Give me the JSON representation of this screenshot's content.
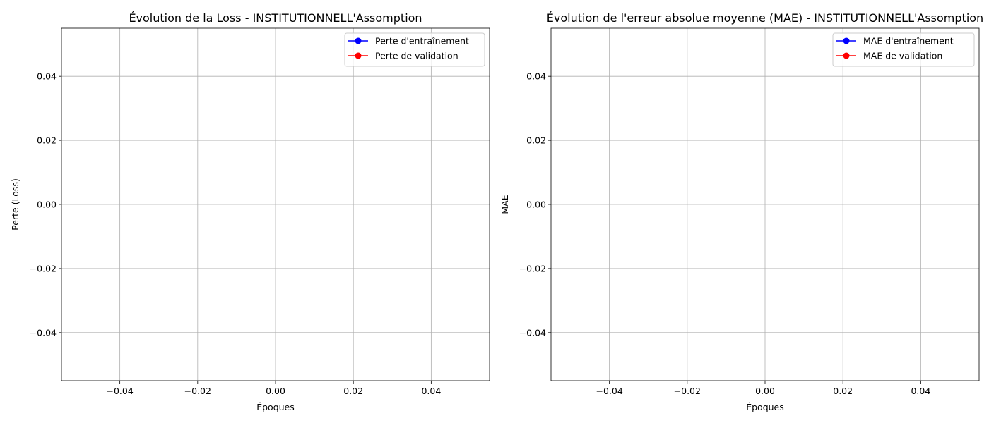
{
  "chart_data": [
    {
      "type": "line",
      "title": "Évolution de la Loss - INSTITUTIONNELL'Assomption",
      "xlabel": "Époques",
      "ylabel": "Perte (Loss)",
      "xlim": [
        -0.055,
        0.055
      ],
      "ylim": [
        -0.055,
        0.055
      ],
      "xticks": [
        -0.04,
        -0.02,
        0.0,
        0.02,
        0.04
      ],
      "xtick_labels": [
        "−0.04",
        "−0.02",
        "0.00",
        "0.02",
        "0.04"
      ],
      "yticks": [
        -0.04,
        -0.02,
        0.0,
        0.02,
        0.04
      ],
      "ytick_labels": [
        "−0.04",
        "−0.02",
        "0.00",
        "0.02",
        "0.04"
      ],
      "grid": true,
      "legend_position": "top-right",
      "series": [
        {
          "name": "Perte d'entraînement",
          "color": "#0000ff",
          "marker": "circle",
          "x": [],
          "y": []
        },
        {
          "name": "Perte de validation",
          "color": "#ff0000",
          "marker": "circle",
          "x": [],
          "y": []
        }
      ]
    },
    {
      "type": "line",
      "title": "Évolution de l'erreur absolue moyenne (MAE) - INSTITUTIONNELL'Assomption",
      "xlabel": "Époques",
      "ylabel": "MAE",
      "xlim": [
        -0.055,
        0.055
      ],
      "ylim": [
        -0.055,
        0.055
      ],
      "xticks": [
        -0.04,
        -0.02,
        0.0,
        0.02,
        0.04
      ],
      "xtick_labels": [
        "−0.04",
        "−0.02",
        "0.00",
        "0.02",
        "0.04"
      ],
      "yticks": [
        -0.04,
        -0.02,
        0.0,
        0.02,
        0.04
      ],
      "ytick_labels": [
        "−0.04",
        "−0.02",
        "0.00",
        "0.02",
        "0.04"
      ],
      "grid": true,
      "legend_position": "top-right",
      "series": [
        {
          "name": "MAE d'entraînement",
          "color": "#0000ff",
          "marker": "circle",
          "x": [],
          "y": []
        },
        {
          "name": "MAE de validation",
          "color": "#ff0000",
          "marker": "circle",
          "x": [],
          "y": []
        }
      ]
    }
  ]
}
